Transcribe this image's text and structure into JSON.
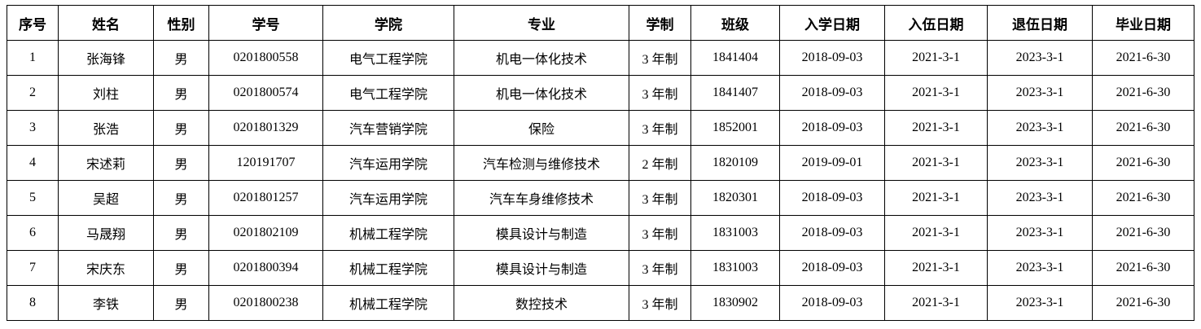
{
  "table": {
    "columns": [
      "序号",
      "姓名",
      "性别",
      "学号",
      "学院",
      "专业",
      "学制",
      "班级",
      "入学日期",
      "入伍日期",
      "退伍日期",
      "毕业日期"
    ],
    "rows": [
      [
        "1",
        "张海锋",
        "男",
        "0201800558",
        "电气工程学院",
        "机电一体化技术",
        "3 年制",
        "1841404",
        "2018-09-03",
        "2021-3-1",
        "2023-3-1",
        "2021-6-30"
      ],
      [
        "2",
        "刘柱",
        "男",
        "0201800574",
        "电气工程学院",
        "机电一体化技术",
        "3 年制",
        "1841407",
        "2018-09-03",
        "2021-3-1",
        "2023-3-1",
        "2021-6-30"
      ],
      [
        "3",
        "张浩",
        "男",
        "0201801329",
        "汽车营销学院",
        "保险",
        "3 年制",
        "1852001",
        "2018-09-03",
        "2021-3-1",
        "2023-3-1",
        "2021-6-30"
      ],
      [
        "4",
        "宋述莉",
        "男",
        "120191707",
        "汽车运用学院",
        "汽车检测与维修技术",
        "2 年制",
        "1820109",
        "2019-09-01",
        "2021-3-1",
        "2023-3-1",
        "2021-6-30"
      ],
      [
        "5",
        "吴超",
        "男",
        "0201801257",
        "汽车运用学院",
        "汽车车身维修技术",
        "3 年制",
        "1820301",
        "2018-09-03",
        "2021-3-1",
        "2023-3-1",
        "2021-6-30"
      ],
      [
        "6",
        "马晟翔",
        "男",
        "0201802109",
        "机械工程学院",
        "模具设计与制造",
        "3 年制",
        "1831003",
        "2018-09-03",
        "2021-3-1",
        "2023-3-1",
        "2021-6-30"
      ],
      [
        "7",
        "宋庆东",
        "男",
        "0201800394",
        "机械工程学院",
        "模具设计与制造",
        "3 年制",
        "1831003",
        "2018-09-03",
        "2021-3-1",
        "2023-3-1",
        "2021-6-30"
      ],
      [
        "8",
        "李铁",
        "男",
        "0201800238",
        "机械工程学院",
        "数控技术",
        "3 年制",
        "1830902",
        "2018-09-03",
        "2021-3-1",
        "2023-3-1",
        "2021-6-30"
      ]
    ],
    "colors": {
      "border": "#000000",
      "text": "#000000",
      "background": "#ffffff"
    }
  }
}
